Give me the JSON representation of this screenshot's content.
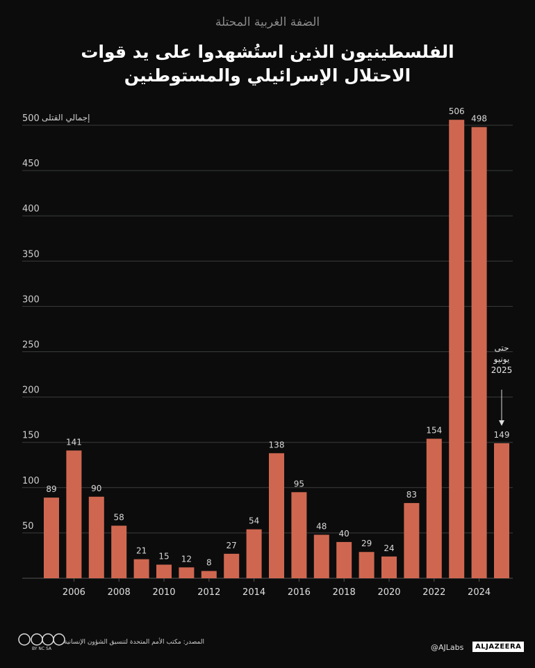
{
  "chart_data": {
    "type": "bar",
    "subtitle": "الضفة الغربية المحتلة",
    "title": "الفلسطينيون الذين استُشهدوا على يد قوات الاحتلال الإسرائيلي والمستوطنين",
    "y_label": "إجمالي القتلى",
    "annotation": "حتى يونيو 2025",
    "categories": [
      null,
      "2006",
      null,
      "2008",
      null,
      "2010",
      null,
      "2012",
      null,
      "2014",
      null,
      "2016",
      null,
      "2018",
      null,
      "2020",
      null,
      "2022",
      null,
      "2024",
      null
    ],
    "values": [
      89,
      141,
      90,
      58,
      21,
      15,
      12,
      8,
      27,
      54,
      138,
      95,
      48,
      40,
      29,
      24,
      83,
      154,
      506,
      498,
      149
    ],
    "color": "#cf6750",
    "ylim": [
      0,
      500
    ],
    "yticks": [
      50,
      100,
      150,
      200,
      250,
      300,
      350,
      400,
      450,
      500
    ],
    "grid": true,
    "source": "المصدر: مكتب الأمم المتحدة لتنسيق الشؤون الإنسانية",
    "credit": "@AJLabs",
    "logo": "ALJAZEERA",
    "license": "BY NC SA"
  }
}
